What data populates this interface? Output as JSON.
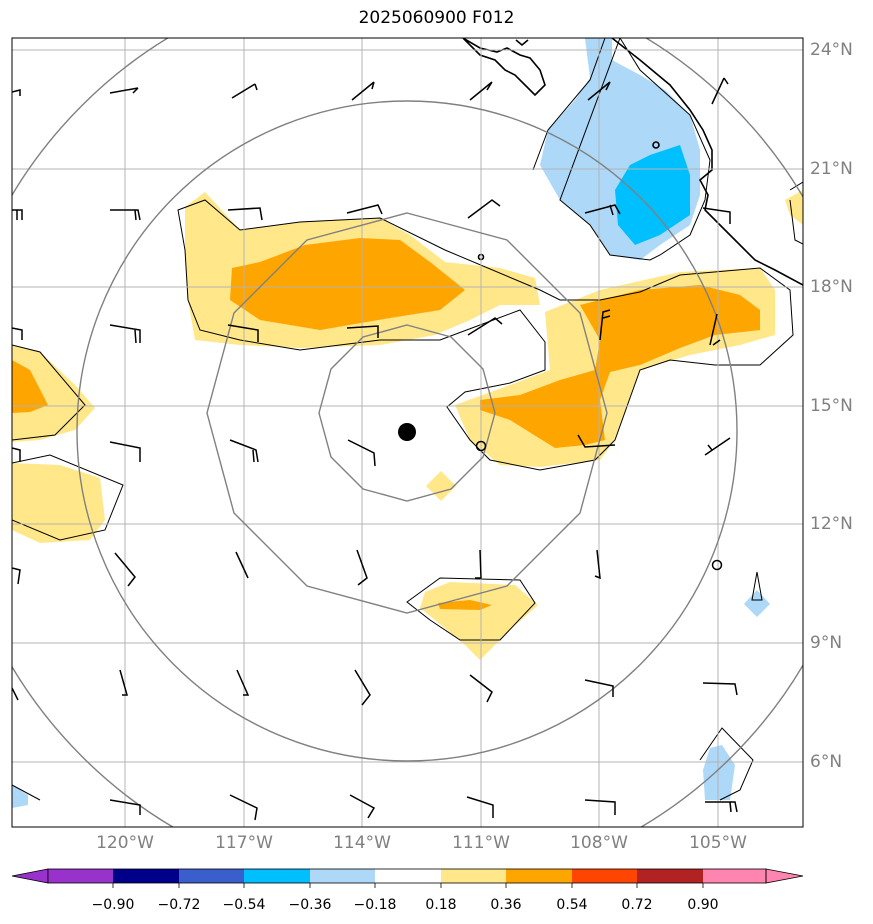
{
  "title": "2025060900 F012",
  "lat_labels": [
    "24°N",
    "21°N",
    "18°N",
    "15°N",
    "12°N",
    "9°N",
    "6°N"
  ],
  "lon_labels": [
    "120°W",
    "117°W",
    "114°W",
    "111°W",
    "108°W",
    "105°W"
  ],
  "colorbar": {
    "ticks": [
      "−0.90",
      "−0.72",
      "−0.54",
      "−0.36",
      "−0.18",
      "0.18",
      "0.36",
      "0.54",
      "0.72",
      "0.90"
    ],
    "colors": [
      "#9932cc",
      "#00008b",
      "#3a5fcd",
      "#00bfff",
      "#add8f7",
      "#ffffff",
      "#ffe78a",
      "#ffa500",
      "#ff4500",
      "#b22222",
      "#ff85b0"
    ]
  },
  "legend_colors": {
    "pos_light": "#ffe78a",
    "pos_mid": "#ffa500",
    "pos_high": "#ff4500",
    "neg_light": "#add8f7",
    "neg_mid": "#00bfff"
  }
}
